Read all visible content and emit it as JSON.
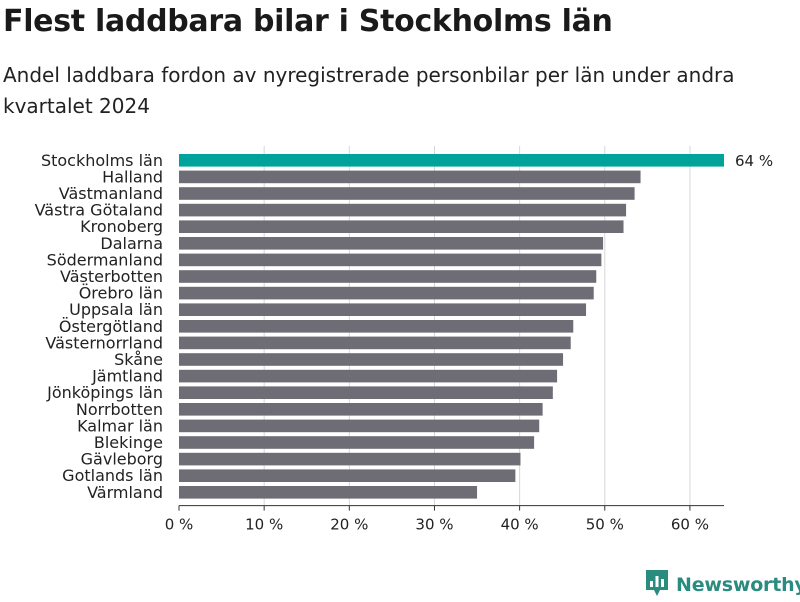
{
  "title": "Flest laddbara bilar i Stockholms län",
  "subtitle": "Andel laddbara fordon av nyregistrerade personbilar per län under andra kvartalet 2024",
  "brand": {
    "name": "Newsworthy",
    "color": "#2a8b7f"
  },
  "colors": {
    "highlight": "#00a39a",
    "bar": "#6e6c75",
    "grid": "#d6d6d6",
    "axis": "#333333"
  },
  "chart_data": {
    "type": "bar",
    "orientation": "horizontal",
    "title": "Flest laddbara bilar i Stockholms län",
    "xlabel": "",
    "ylabel": "",
    "xlim": [
      0,
      64
    ],
    "xticks": [
      0,
      10,
      20,
      30,
      40,
      50,
      60
    ],
    "tick_suffix": " %",
    "grid": true,
    "highlight_index": 0,
    "highlight_label": "64 %",
    "categories": [
      "Stockholms län",
      "Halland",
      "Västmanland",
      "Västra Götaland",
      "Kronoberg",
      "Dalarna",
      "Södermanland",
      "Västerbotten",
      "Örebro län",
      "Uppsala län",
      "Östergötland",
      "Västernorrland",
      "Skåne",
      "Jämtland",
      "Jönköpings län",
      "Norrbotten",
      "Kalmar län",
      "Blekinge",
      "Gävleborg",
      "Gotlands län",
      "Värmland"
    ],
    "values": [
      64,
      54.2,
      53.5,
      52.5,
      52.2,
      49.8,
      49.6,
      49.0,
      48.7,
      47.8,
      46.3,
      46.0,
      45.1,
      44.4,
      43.9,
      42.7,
      42.3,
      41.7,
      40.1,
      39.5,
      35.0
    ]
  }
}
